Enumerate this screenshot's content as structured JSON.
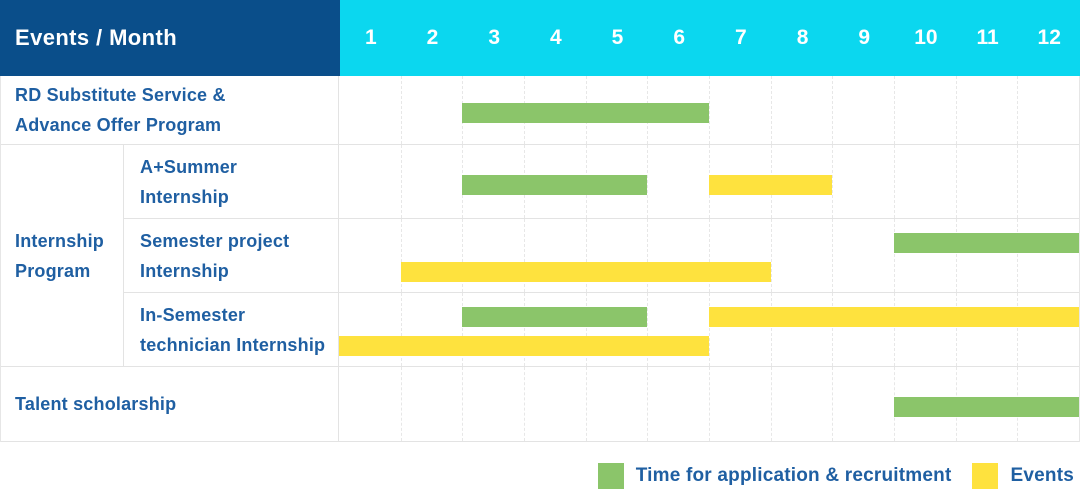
{
  "header": {
    "title": "Events / Month",
    "months": [
      "1",
      "2",
      "3",
      "4",
      "5",
      "6",
      "7",
      "8",
      "9",
      "10",
      "11",
      "12"
    ]
  },
  "colors": {
    "header_bg": "#0a4e8a",
    "month_header_bg": "#0bd7ef",
    "header_text": "#ffffff",
    "label_text": "#1f5fa2",
    "green": "#8bc56a",
    "yellow": "#fee23e",
    "grid_line": "#e7e7e7"
  },
  "sections": [
    {
      "kind": "single",
      "label_lines": [
        "RD Substitute Service &",
        "Advance Offer Program"
      ],
      "bars": [
        {
          "color": "green",
          "start": 3,
          "end": 6,
          "lane": "mid"
        }
      ]
    },
    {
      "kind": "group",
      "label_lines": [
        "Internship",
        "Program"
      ],
      "rows": [
        {
          "label_lines": [
            "A+Summer",
            "Internship"
          ],
          "bars": [
            {
              "color": "green",
              "start": 3,
              "end": 5,
              "lane": "mid"
            },
            {
              "color": "yellow",
              "start": 7,
              "end": 8,
              "lane": "mid"
            }
          ]
        },
        {
          "label_lines": [
            "Semester project",
            "Internship"
          ],
          "bars": [
            {
              "color": "green",
              "start": 10,
              "end": 12,
              "lane": "top"
            },
            {
              "color": "yellow",
              "start": 2,
              "end": 7,
              "lane": "bottom"
            }
          ]
        },
        {
          "label_lines": [
            "In-Semester",
            "technician Internship"
          ],
          "bars": [
            {
              "color": "green",
              "start": 3,
              "end": 5,
              "lane": "top"
            },
            {
              "color": "yellow",
              "start": 7,
              "end": 12,
              "lane": "top"
            },
            {
              "color": "yellow",
              "start": 1,
              "end": 6,
              "lane": "bottom"
            }
          ]
        }
      ]
    },
    {
      "kind": "single",
      "label_lines": [
        "Talent scholarship"
      ],
      "bars": [
        {
          "color": "green",
          "start": 10,
          "end": 12,
          "lane": "mid"
        }
      ]
    }
  ],
  "legend": {
    "items": [
      {
        "color": "green",
        "label": "Time for application & recruitment"
      },
      {
        "color": "yellow",
        "label": "Events"
      }
    ]
  },
  "chart_data": {
    "type": "bar",
    "subtype": "gantt-timeline",
    "title": "Events / Month",
    "x_axis": {
      "label": "Month",
      "ticks": [
        1,
        2,
        3,
        4,
        5,
        6,
        7,
        8,
        9,
        10,
        11,
        12
      ],
      "range": [
        1,
        12
      ]
    },
    "series_legend": [
      {
        "name": "Time for application & recruitment",
        "color": "#8bc56a"
      },
      {
        "name": "Events",
        "color": "#fee23e"
      }
    ],
    "rows": [
      {
        "event": "RD Substitute Service & Advance Offer Program",
        "group": null,
        "spans": [
          {
            "series": "Time for application & recruitment",
            "start_month": 3,
            "end_month": 6
          }
        ]
      },
      {
        "event": "A+Summer Internship",
        "group": "Internship Program",
        "spans": [
          {
            "series": "Time for application & recruitment",
            "start_month": 3,
            "end_month": 5
          },
          {
            "series": "Events",
            "start_month": 7,
            "end_month": 8
          }
        ]
      },
      {
        "event": "Semester project Internship",
        "group": "Internship Program",
        "spans": [
          {
            "series": "Time for application & recruitment",
            "start_month": 10,
            "end_month": 12
          },
          {
            "series": "Events",
            "start_month": 2,
            "end_month": 7
          }
        ]
      },
      {
        "event": "In-Semester technician Internship",
        "group": "Internship Program",
        "spans": [
          {
            "series": "Time for application & recruitment",
            "start_month": 3,
            "end_month": 5
          },
          {
            "series": "Events",
            "start_month": 1,
            "end_month": 6
          },
          {
            "series": "Events",
            "start_month": 7,
            "end_month": 12
          }
        ]
      },
      {
        "event": "Talent scholarship",
        "group": null,
        "spans": [
          {
            "series": "Time for application & recruitment",
            "start_month": 10,
            "end_month": 12
          }
        ]
      }
    ],
    "grid": true,
    "legend_position": "bottom-right"
  }
}
